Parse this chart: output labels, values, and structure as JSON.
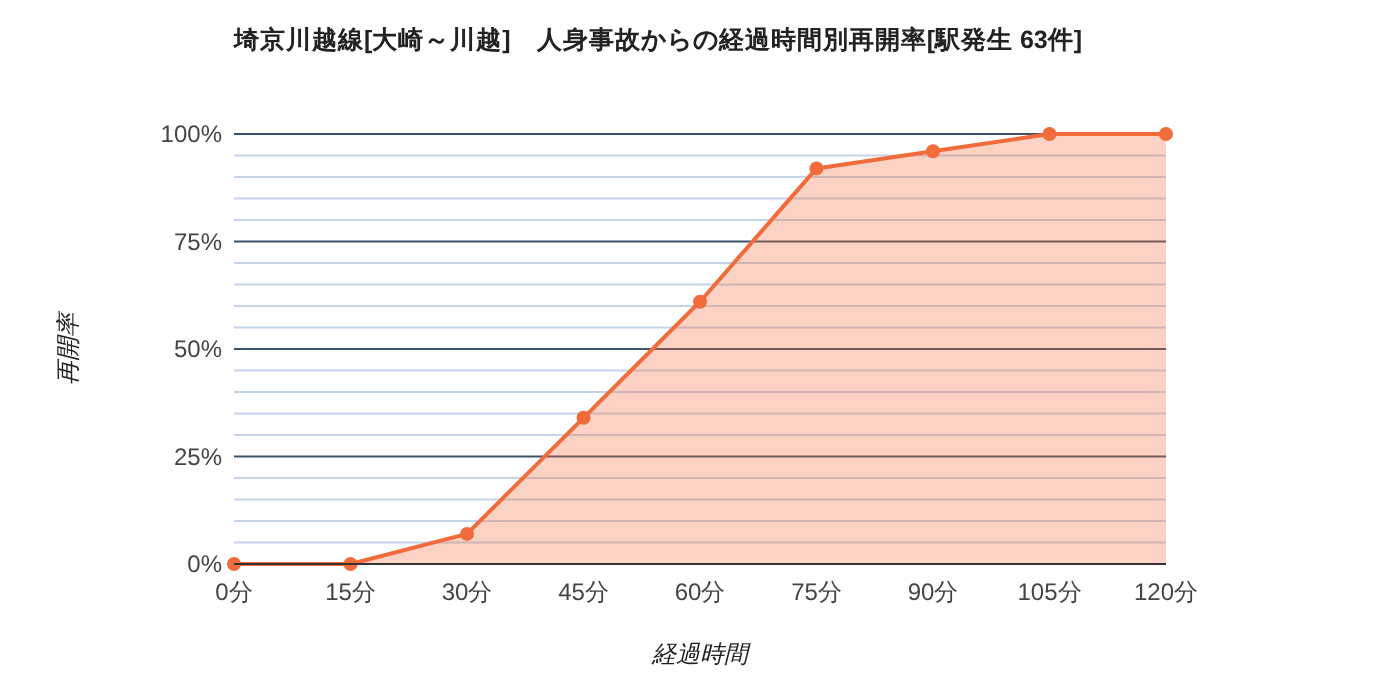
{
  "chart_data": {
    "type": "area",
    "title": "埼京川越線[大崎～川越]　人身事故からの経過時間別再開率[駅発生 63件]",
    "xlabel": "経過時間",
    "ylabel": "再開率",
    "categories": [
      "0分",
      "15分",
      "30分",
      "45分",
      "60分",
      "75分",
      "90分",
      "105分",
      "120分"
    ],
    "series": [
      {
        "color": "#f26b3a",
        "values": [
          0,
          0,
          7,
          34,
          61,
          92,
          96,
          100,
          100
        ]
      }
    ],
    "ylim": [
      0,
      100
    ],
    "yticks": [
      {
        "value": 0,
        "label": "0%"
      },
      {
        "value": 5,
        "label": null
      },
      {
        "value": 10,
        "label": null
      },
      {
        "value": 15,
        "label": null
      },
      {
        "value": 20,
        "label": null
      },
      {
        "value": 25,
        "label": "25%"
      },
      {
        "value": 30,
        "label": null
      },
      {
        "value": 35,
        "label": null
      },
      {
        "value": 40,
        "label": null
      },
      {
        "value": 45,
        "label": null
      },
      {
        "value": 50,
        "label": "50%"
      },
      {
        "value": 55,
        "label": null
      },
      {
        "value": 60,
        "label": null
      },
      {
        "value": 65,
        "label": null
      },
      {
        "value": 70,
        "label": null
      },
      {
        "value": 75,
        "label": "75%"
      },
      {
        "value": 80,
        "label": null
      },
      {
        "value": 85,
        "label": null
      },
      {
        "value": 90,
        "label": null
      },
      {
        "value": 95,
        "label": null
      },
      {
        "value": 100,
        "label": "100%"
      }
    ],
    "grid": "y",
    "marker": "circle"
  }
}
